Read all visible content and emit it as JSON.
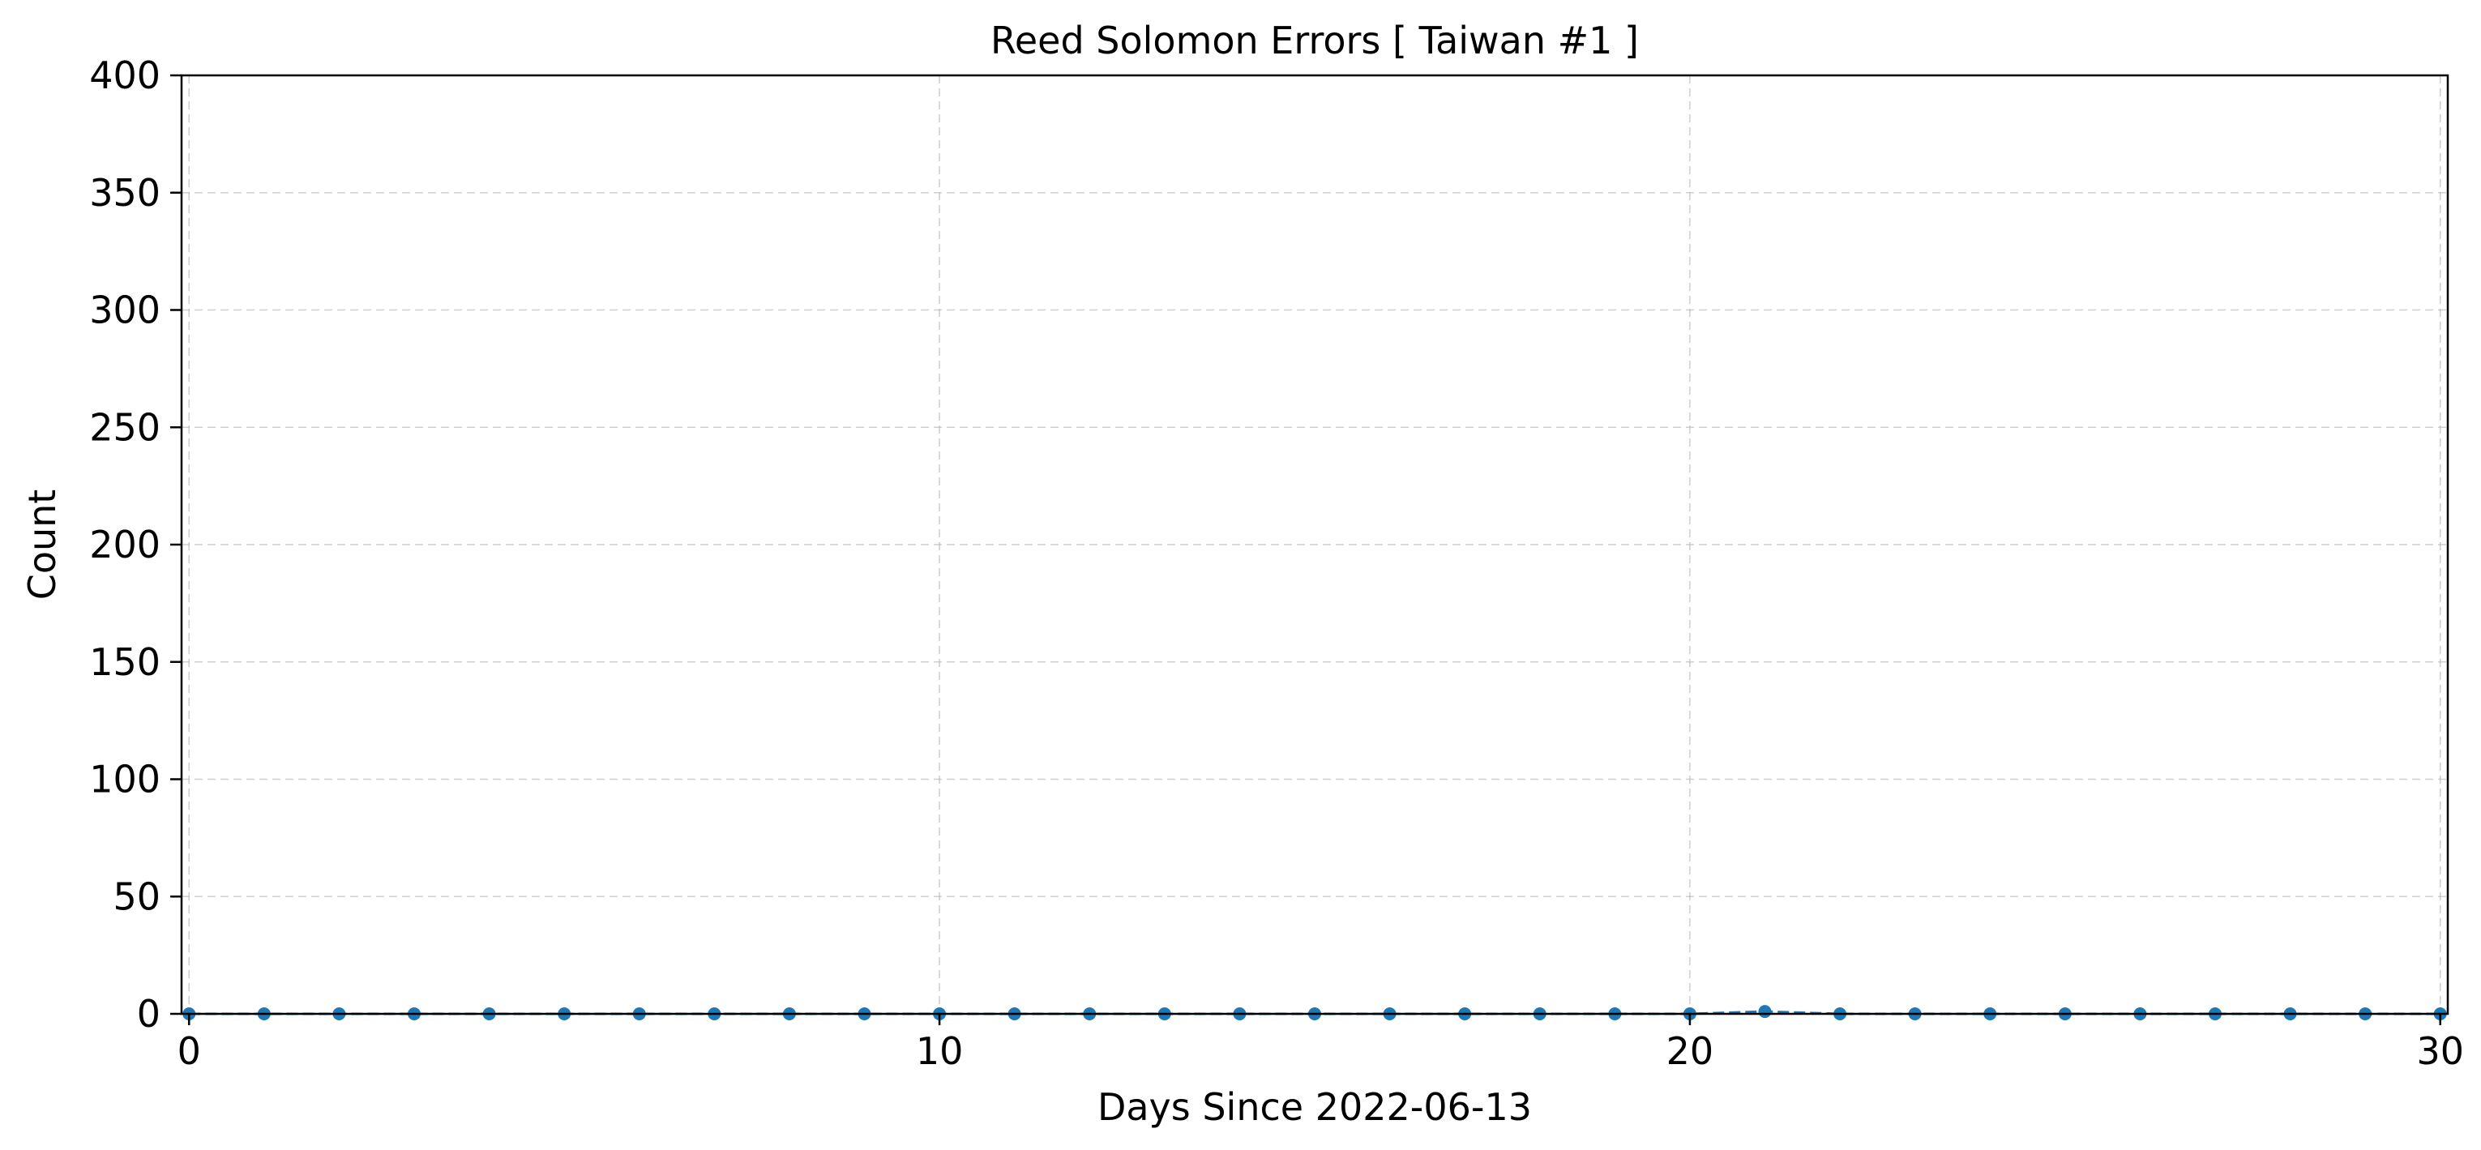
{
  "chart_data": {
    "type": "line",
    "title": "Reed Solomon Errors [ Taiwan #1 ]",
    "xlabel": "Days Since 2022-06-13",
    "ylabel": "Count",
    "xlim": [
      -0.1,
      30.1
    ],
    "ylim": [
      0,
      400
    ],
    "xticks": [
      0,
      10,
      20,
      30
    ],
    "xtick_labels": [
      "0",
      "10",
      "20",
      "30"
    ],
    "yticks": [
      0,
      50,
      100,
      150,
      200,
      250,
      300,
      350,
      400
    ],
    "ytick_labels": [
      "0",
      "50",
      "100",
      "150",
      "200",
      "250",
      "300",
      "350",
      "400"
    ],
    "grid": true,
    "legend": false,
    "series": [
      {
        "color": "#1f77b4",
        "line_style": "dashed",
        "marker": "circle",
        "x": [
          0,
          1,
          2,
          3,
          4,
          5,
          6,
          7,
          8,
          9,
          10,
          11,
          12,
          13,
          14,
          15,
          16,
          17,
          18,
          19,
          20,
          21,
          22,
          23,
          24,
          25,
          26,
          27,
          28,
          29,
          30
        ],
        "y": [
          0,
          0,
          0,
          0,
          0,
          0,
          0,
          0,
          0,
          0,
          0,
          0,
          0,
          0,
          0,
          0,
          0,
          0,
          0,
          0,
          0,
          1,
          0,
          0,
          0,
          0,
          0,
          0,
          0,
          0,
          0
        ]
      }
    ]
  }
}
